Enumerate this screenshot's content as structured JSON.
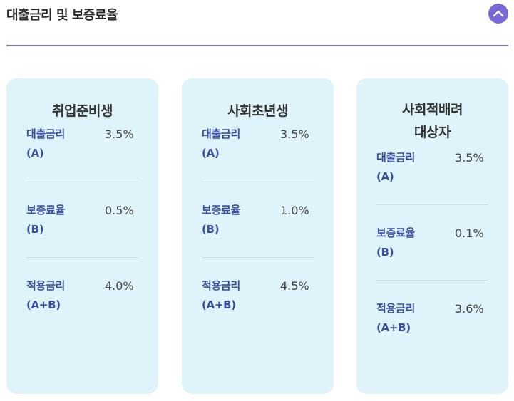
{
  "section": {
    "title": "대출금리 및 보증료율",
    "toggle_icon": "chevron-up-icon",
    "accent_color": "#7b68d8"
  },
  "cards": [
    {
      "title_lines": [
        "취업준비생"
      ],
      "rows": [
        {
          "label_main": "대출금리",
          "label_sub": "(A)",
          "value": "3.5%"
        },
        {
          "label_main": "보증료율",
          "label_sub": "(B)",
          "value": "0.5%"
        },
        {
          "label_main": "적용금리",
          "label_sub": "(A+B)",
          "value": "4.0%"
        }
      ]
    },
    {
      "title_lines": [
        "사회초년생"
      ],
      "rows": [
        {
          "label_main": "대출금리",
          "label_sub": "(A)",
          "value": "3.5%"
        },
        {
          "label_main": "보증료율",
          "label_sub": "(B)",
          "value": "1.0%"
        },
        {
          "label_main": "적용금리",
          "label_sub": "(A+B)",
          "value": "4.5%"
        }
      ]
    },
    {
      "title_lines": [
        "사회적배려",
        "대상자"
      ],
      "rows": [
        {
          "label_main": "대출금리",
          "label_sub": "(A)",
          "value": "3.5%"
        },
        {
          "label_main": "보증료율",
          "label_sub": "(B)",
          "value": "0.1%"
        },
        {
          "label_main": "적용금리",
          "label_sub": "(A+B)",
          "value": "3.6%"
        }
      ]
    }
  ],
  "colors": {
    "card_background": "#dff3fb",
    "label_color": "#3b4fa0",
    "value_color": "#444444"
  }
}
